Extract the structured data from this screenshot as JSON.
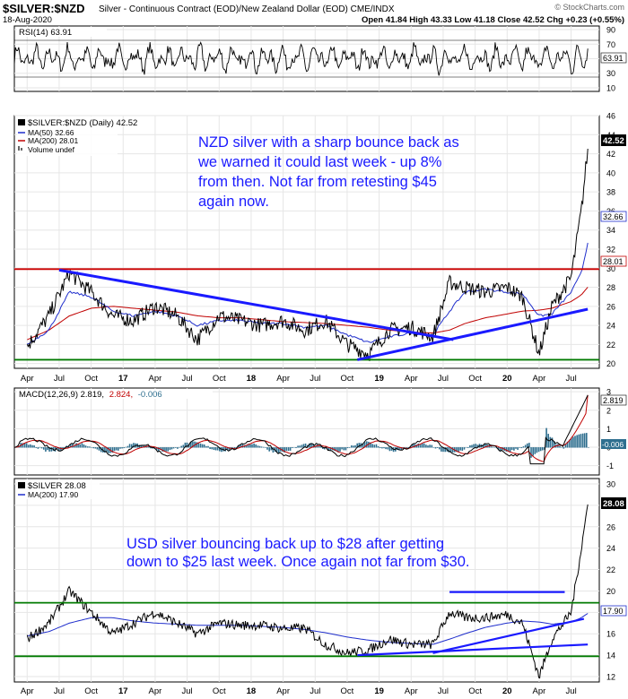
{
  "header": {
    "symbol": "$SILVER:$NZD",
    "description": "Silver - Continuous Contract (EOD)/New Zealand Dollar (EOD) CME/INDX",
    "date": "18-Aug-2020",
    "ohlc": "Open 41.84 High 43.33 Low 41.18 Close 42.52 Chg +0.23 (+0.55%)",
    "watermark": "© StockCharts.com"
  },
  "colors": {
    "price": "#000000",
    "ma50": "#1f2ecc",
    "ma200": "#c00000",
    "annotation": "#1a1aff",
    "support": "#007a00",
    "resistance": "#cc0000",
    "histogram": "#2f6f8f"
  },
  "x_labels": [
    "Apr",
    "Jul",
    "Oct",
    "17",
    "Apr",
    "Jul",
    "Oct",
    "18",
    "Apr",
    "Jul",
    "Oct",
    "19",
    "Apr",
    "Jul",
    "Oct",
    "20",
    "Apr",
    "Jul"
  ],
  "rsi_panel": {
    "legend": "RSI(14) 63.91",
    "value_box": "63.91",
    "ticks": [
      "90",
      "70",
      "50",
      "30",
      "10"
    ],
    "chart_data": {
      "type": "line",
      "name": "RSI(14)",
      "last": 63.91,
      "ylim": [
        10,
        90
      ],
      "overbought": 70,
      "oversold": 30
    }
  },
  "nzd_panel": {
    "legend": [
      "$SILVER:$NZD (Daily) 42.52",
      "MA(50) 32.66",
      "MA(200) 28.01",
      "Volume undef"
    ],
    "ticks": [
      "46",
      "44",
      "42",
      "40",
      "38",
      "36",
      "34",
      "32",
      "30",
      "28",
      "26",
      "24",
      "22",
      "20"
    ],
    "boxes": {
      "last": "42.52",
      "ma50": "32.66",
      "ma200": "28.01"
    },
    "annotation": [
      "NZD silver with a sharp bounce back as",
      "we warned it could last week - up 8%",
      "from then. Not far from retesting $45",
      "again now."
    ],
    "chart_data": {
      "type": "line",
      "ylim": [
        19.5,
        46
      ],
      "x": [
        2016.25,
        2016.42,
        2016.58,
        2016.75,
        2016.92,
        2017.08,
        2017.25,
        2017.42,
        2017.58,
        2017.75,
        2017.92,
        2018.08,
        2018.25,
        2018.42,
        2018.58,
        2018.75,
        2018.92,
        2019.08,
        2019.25,
        2019.42,
        2019.55,
        2019.67,
        2019.83,
        2020.0,
        2020.12,
        2020.25,
        2020.35,
        2020.5,
        2020.58,
        2020.63
      ],
      "series": [
        {
          "name": "$SILVER:$NZD",
          "values": [
            21.8,
            25,
            29.5,
            27.5,
            25,
            24.5,
            26,
            25,
            22.5,
            25,
            24.5,
            24,
            24.5,
            23.5,
            24.5,
            22,
            21,
            23.5,
            23.8,
            22.8,
            28.5,
            28,
            27.5,
            28,
            27,
            21,
            26,
            29,
            36,
            42.52
          ]
        },
        {
          "name": "MA(50)",
          "values": [
            22,
            23.5,
            27.5,
            27,
            25.5,
            25,
            25.5,
            25,
            24,
            24.5,
            24.5,
            24.2,
            24.2,
            23.8,
            24,
            23,
            22.2,
            22.8,
            23.2,
            23,
            25.5,
            27.5,
            27.8,
            27.5,
            27.3,
            25,
            25.2,
            27.5,
            29.5,
            32.66
          ]
        },
        {
          "name": "MA(200)",
          "values": [
            22.5,
            23.5,
            25,
            25.8,
            26,
            25.8,
            25.6,
            25.4,
            25,
            24.8,
            24.8,
            24.6,
            24.4,
            24.3,
            24.2,
            24,
            23.8,
            23.5,
            23.3,
            23.2,
            23.5,
            24.2,
            24.8,
            25.2,
            25.5,
            25.6,
            25.8,
            26.5,
            27.2,
            28.01
          ]
        }
      ],
      "annotations": [
        {
          "type": "horizontal",
          "value": 29.9,
          "label": "resistance"
        },
        {
          "type": "horizontal",
          "value": 20.4,
          "label": "support"
        },
        {
          "type": "trend",
          "from": [
            2016.5,
            29.8
          ],
          "to": [
            2019.58,
            22.5
          ]
        },
        {
          "type": "trend",
          "from": [
            2018.83,
            20.4
          ],
          "to": [
            2020.63,
            25.7
          ]
        }
      ]
    }
  },
  "macd_panel": {
    "legend": "MACD(12,26,9) 2.819, 2.824, -0.006",
    "legend_parts": [
      "MACD(12,26,9) 2.819,",
      "2.824,",
      "-0.006"
    ],
    "ticks": [
      "3",
      "2",
      "1",
      "0",
      "-1"
    ],
    "boxes": {
      "macd": "2.819",
      "hist": "-0.006"
    },
    "chart_data": {
      "type": "line",
      "series": [
        {
          "name": "MACD",
          "last": 2.819
        },
        {
          "name": "Signal",
          "last": 2.824
        },
        {
          "name": "Histogram",
          "last": -0.006
        }
      ],
      "ylim": [
        -1.5,
        3.2
      ]
    }
  },
  "usd_panel": {
    "legend": [
      "$SILVER 28.08",
      "MA(200) 17.90"
    ],
    "ticks": [
      "30",
      "28",
      "26",
      "24",
      "22",
      "20",
      "18",
      "16",
      "14",
      "12"
    ],
    "boxes": {
      "last": "28.08",
      "ma200": "17.90"
    },
    "annotation": [
      "USD silver bouncing back up to $28 after getting",
      "down to $25 last week. Once again not far from $30."
    ],
    "chart_data": {
      "type": "line",
      "ylim": [
        11.5,
        30.5
      ],
      "x": [
        2016.25,
        2016.42,
        2016.58,
        2016.75,
        2016.92,
        2017.08,
        2017.25,
        2017.42,
        2017.58,
        2017.75,
        2017.92,
        2018.08,
        2018.25,
        2018.42,
        2018.58,
        2018.75,
        2018.92,
        2019.08,
        2019.25,
        2019.42,
        2019.55,
        2019.67,
        2019.83,
        2020.0,
        2020.12,
        2020.25,
        2020.35,
        2020.5,
        2020.58,
        2020.63
      ],
      "series": [
        {
          "name": "$SILVER",
          "values": [
            15.5,
            17,
            20,
            18,
            16,
            17,
            18,
            17,
            16,
            17,
            16.8,
            16.8,
            16.5,
            16.5,
            15,
            14.2,
            14.5,
            15.5,
            15,
            15,
            18,
            17.5,
            17.5,
            17.8,
            17,
            12,
            15.5,
            18,
            24,
            28.08
          ]
        },
        {
          "name": "MA(200)",
          "values": [
            15.8,
            16.2,
            17,
            17.5,
            17.5,
            17.2,
            17,
            16.9,
            16.8,
            16.8,
            16.8,
            16.7,
            16.6,
            16.4,
            16.1,
            15.7,
            15.4,
            15.2,
            15.1,
            15,
            15.5,
            16,
            16.6,
            17,
            17.2,
            17.1,
            16.9,
            17.1,
            17.5,
            17.9
          ]
        }
      ],
      "annotations": [
        {
          "type": "horizontal",
          "value": 18.9,
          "label": "resistance"
        },
        {
          "type": "horizontal",
          "value": 13.9,
          "label": "support"
        },
        {
          "type": "segment",
          "from": [
            2019.55,
            19.9
          ],
          "to": [
            2020.45,
            19.9
          ]
        },
        {
          "type": "trend",
          "from": [
            2018.83,
            14.0
          ],
          "to": [
            2020.63,
            15.0
          ]
        },
        {
          "type": "trend",
          "from": [
            2019.42,
            14.2
          ],
          "to": [
            2020.6,
            17.4
          ]
        }
      ]
    }
  }
}
